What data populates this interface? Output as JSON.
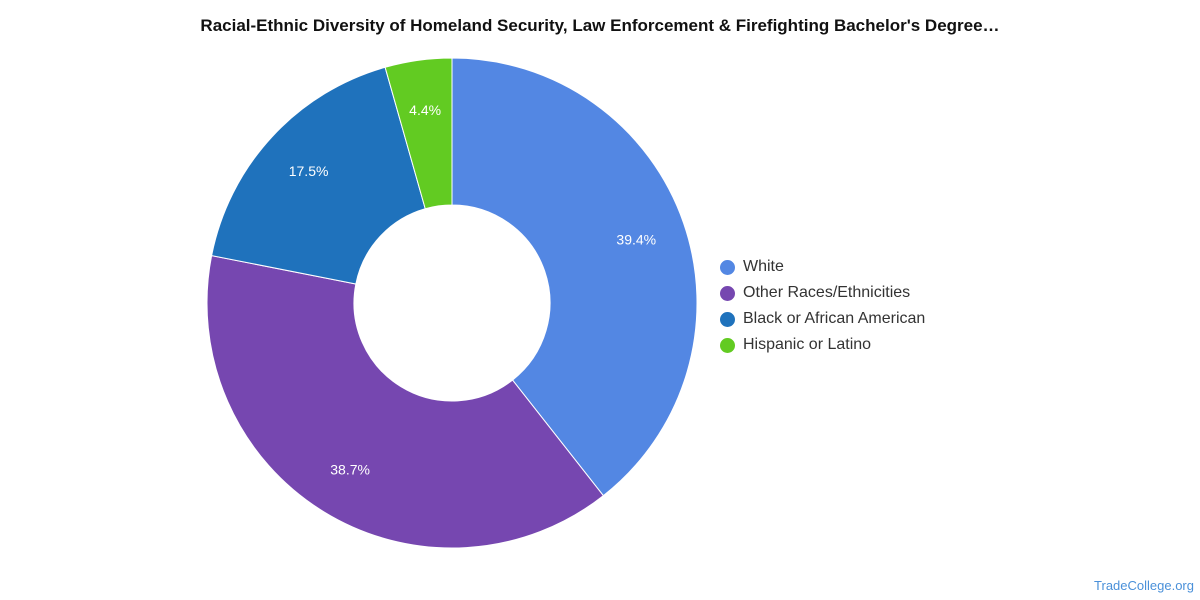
{
  "chart_data": {
    "type": "pie",
    "title": "Racial-Ethnic Diversity of Homeland Security, Law Enforcement & Firefighting Bachelor's Degree…",
    "categories": [
      "White",
      "Other Races/Ethnicities",
      "Black or African American",
      "Hispanic or Latino"
    ],
    "values": [
      39.4,
      38.7,
      17.5,
      4.4
    ],
    "value_labels": [
      "39.4%",
      "38.7%",
      "17.5%",
      "4.4%"
    ],
    "colors": [
      "#5387e3",
      "#7647b0",
      "#1f72bc",
      "#62cb22"
    ],
    "donut": true,
    "legend_position": "right"
  },
  "legend": {
    "items": [
      {
        "label": "White",
        "color": "#5387e3"
      },
      {
        "label": "Other Races/Ethnicities",
        "color": "#7647b0"
      },
      {
        "label": "Black or African American",
        "color": "#1f72bc"
      },
      {
        "label": "Hispanic or Latino",
        "color": "#62cb22"
      }
    ]
  },
  "footer": {
    "source": "TradeCollege.org"
  }
}
